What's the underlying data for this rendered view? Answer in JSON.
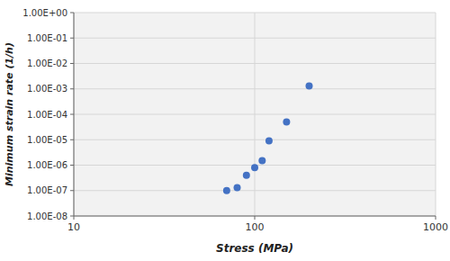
{
  "chart_data": {
    "type": "scatter",
    "x": [
      70,
      80,
      90,
      100,
      110,
      120,
      150,
      200
    ],
    "values": [
      1e-07,
      1.3e-07,
      4e-07,
      8e-07,
      1.5e-06,
      9e-06,
      5e-05,
      0.0013
    ],
    "color": "#4472C4",
    "x_label": "Stress (MPa)",
    "y_label": "Minimum strain rate (1/h)",
    "log": true,
    "grid": true,
    "xlim": [
      10,
      1000
    ],
    "ylim": [
      1e-08,
      1.0
    ],
    "xticks": [
      10,
      100,
      1000
    ],
    "yticks": [
      {
        "value": 1e-08,
        "label": "1.00E-08"
      },
      {
        "value": 1e-07,
        "label": "1.00E-07"
      },
      {
        "value": 1e-06,
        "label": "1.00E-06"
      },
      {
        "value": 1e-05,
        "label": "1.00E-05"
      },
      {
        "value": 0.0001,
        "label": "1.00E-04"
      },
      {
        "value": 0.001,
        "label": "1.00E-03"
      },
      {
        "value": 0.01,
        "label": "1.00E-02"
      },
      {
        "value": 0.1,
        "label": "1.00E-01"
      },
      {
        "value": 1.0,
        "label": "1.00E+00"
      }
    ]
  }
}
